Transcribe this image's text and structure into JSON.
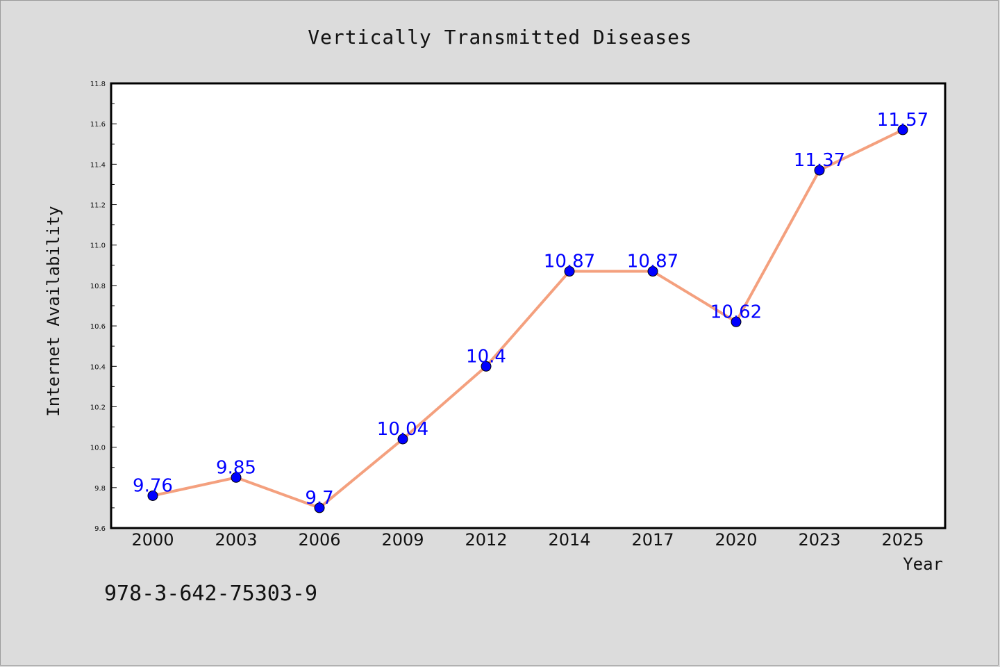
{
  "chart_data": {
    "type": "line",
    "title": "Vertically Transmitted Diseases",
    "xlabel": "Year",
    "ylabel": "Internet Availability",
    "categories": [
      "2000",
      "2003",
      "2006",
      "2009",
      "2012",
      "2014",
      "2017",
      "2020",
      "2023",
      "2025"
    ],
    "series": [
      {
        "values": [
          9.76,
          9.85,
          9.7,
          10.04,
          10.4,
          10.87,
          10.87,
          10.62,
          11.37,
          11.57
        ],
        "data_labels": [
          "9.76",
          "9.85",
          "9.7",
          "10.04",
          "10.4",
          "10.87",
          "10.87",
          "10.62",
          "11.37",
          "11.57"
        ],
        "line_color": "#f4a07e",
        "marker_color": "#0000ff"
      }
    ],
    "ylim": [
      9.6,
      11.8
    ],
    "y_ticks": [
      "9.6",
      "9.8",
      "10.0",
      "10.2",
      "10.4",
      "10.6",
      "10.8",
      "11.0",
      "11.2",
      "11.4",
      "11.6",
      "11.8"
    ],
    "grid": false,
    "legend": "none"
  },
  "annotation": {
    "isbn": "978-3-642-75303-9"
  }
}
